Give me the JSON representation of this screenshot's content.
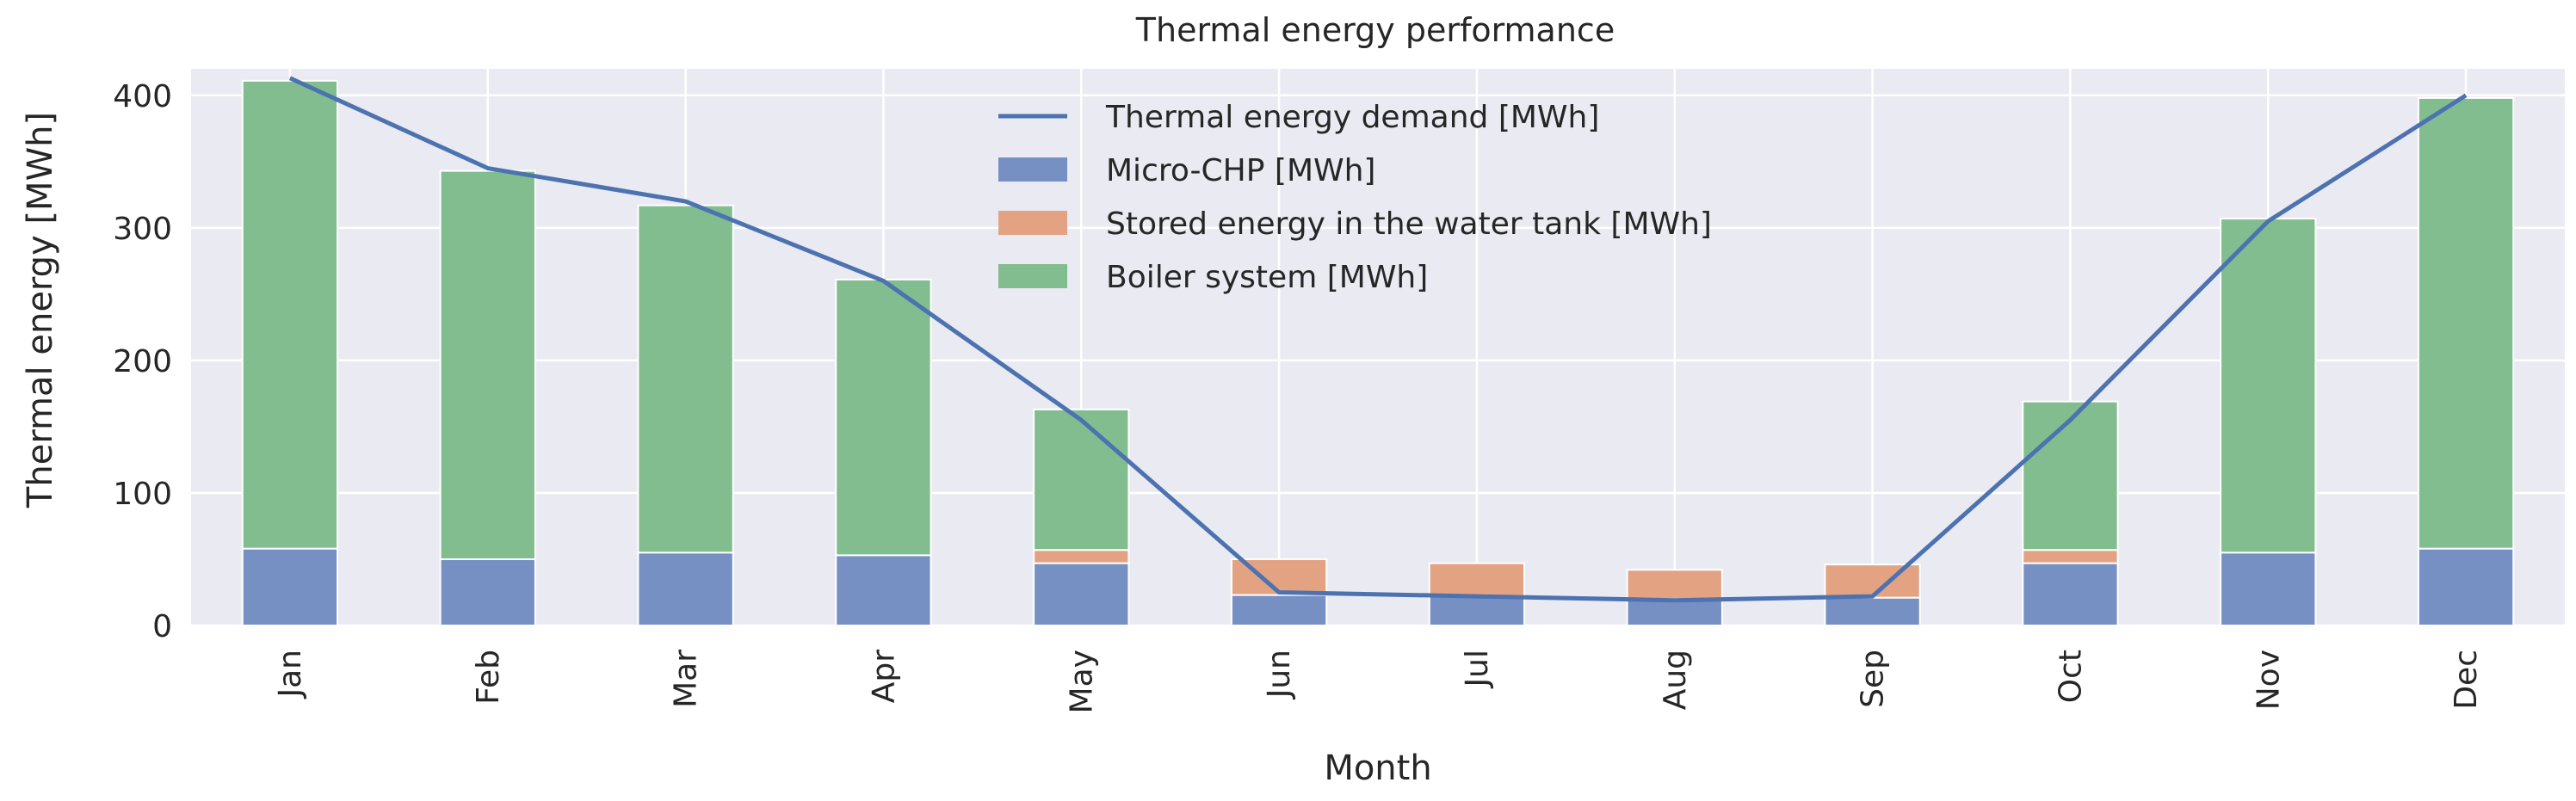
{
  "chart_data": {
    "type": "bar",
    "stacked": true,
    "title": "Thermal energy performance",
    "xlabel": "Month",
    "ylabel": "Thermal energy [MWh]",
    "ylim": [
      0,
      420
    ],
    "yticks": [
      0,
      100,
      200,
      300,
      400
    ],
    "grid": true,
    "legend_position": "top-center",
    "categories": [
      "Jan",
      "Feb",
      "Mar",
      "Apr",
      "May",
      "Jun",
      "Jul",
      "Aug",
      "Sep",
      "Oct",
      "Nov",
      "Dec"
    ],
    "series": [
      {
        "name": "Micro-CHP [MWh]",
        "color": "#7690c4",
        "values": [
          58,
          50,
          55,
          53,
          47,
          23,
          22,
          20,
          21,
          47,
          55,
          58
        ]
      },
      {
        "name": "Stored energy in the water tank [MWh]",
        "color": "#e3a383",
        "values": [
          0,
          0,
          0,
          0,
          10,
          27,
          25,
          22,
          25,
          10,
          0,
          0
        ]
      },
      {
        "name": "Boiler system [MWh]",
        "color": "#81bd8f",
        "values": [
          353,
          293,
          262,
          208,
          106,
          0,
          0,
          0,
          0,
          112,
          252,
          340
        ]
      }
    ],
    "line": {
      "name": "Thermal energy demand [MWh]",
      "color": "#4c72b0",
      "values": [
        413,
        345,
        320,
        260,
        155,
        25,
        22,
        19,
        22,
        155,
        305,
        400
      ]
    }
  }
}
